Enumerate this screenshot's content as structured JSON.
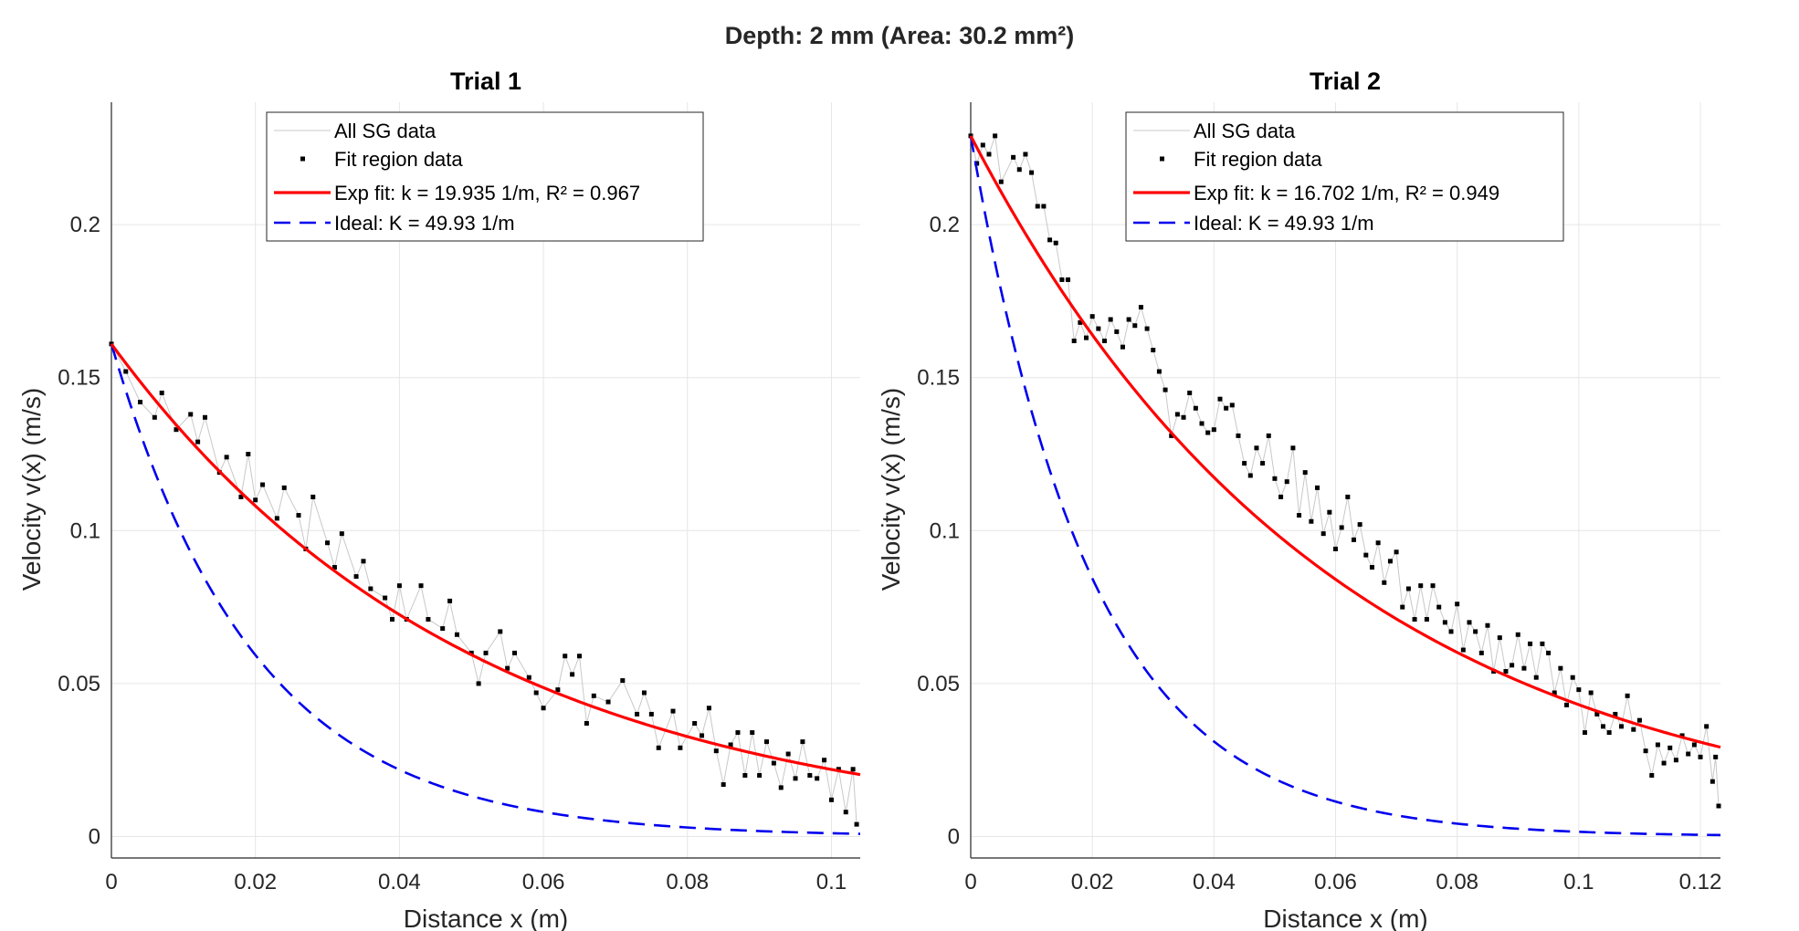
{
  "title": "Depth: 2 mm (Area: 30.2 mm²)",
  "colors": {
    "data_line": "#c8c8c8",
    "points": "#000000",
    "fit": "#ff0000",
    "ideal": "#0000ee",
    "grid": "#e6e6e6"
  },
  "chart_data": [
    {
      "type": "line",
      "title": "Trial 1",
      "xlabel": "Distance x (m)",
      "ylabel": "Velocity v(x) (m/s)",
      "xlim": [
        0,
        0.104
      ],
      "ylim": [
        -0.007,
        0.24
      ],
      "xticks": [
        0,
        0.02,
        0.04,
        0.06,
        0.08,
        0.1
      ],
      "xtick_labels": [
        "0",
        "0.02",
        "0.04",
        "0.06",
        "0.08",
        "0.1"
      ],
      "yticks": [
        0,
        0.05,
        0.1,
        0.15,
        0.2
      ],
      "ytick_labels": [
        "0",
        "0.05",
        "0.1",
        "0.15",
        "0.2"
      ],
      "grid": true,
      "legend_position": "top-center",
      "legend": [
        "All SG data",
        "Fit region data",
        "Exp fit: k = 19.935 1/m, R² = 0.967",
        "Ideal: K = 49.93 1/m"
      ],
      "fit": {
        "v0": 0.161,
        "k": 19.935
      },
      "ideal": {
        "v0": 0.161,
        "k": 49.93
      },
      "points": [
        [
          0,
          0.161
        ],
        [
          0.002,
          0.152
        ],
        [
          0.004,
          0.142
        ],
        [
          0.006,
          0.137
        ],
        [
          0.007,
          0.145
        ],
        [
          0.009,
          0.133
        ],
        [
          0.011,
          0.138
        ],
        [
          0.012,
          0.129
        ],
        [
          0.013,
          0.137
        ],
        [
          0.015,
          0.119
        ],
        [
          0.016,
          0.124
        ],
        [
          0.018,
          0.111
        ],
        [
          0.019,
          0.125
        ],
        [
          0.02,
          0.11
        ],
        [
          0.021,
          0.115
        ],
        [
          0.023,
          0.104
        ],
        [
          0.024,
          0.114
        ],
        [
          0.026,
          0.105
        ],
        [
          0.027,
          0.094
        ],
        [
          0.028,
          0.111
        ],
        [
          0.03,
          0.096
        ],
        [
          0.031,
          0.088
        ],
        [
          0.032,
          0.099
        ],
        [
          0.034,
          0.085
        ],
        [
          0.035,
          0.09
        ],
        [
          0.036,
          0.081
        ],
        [
          0.038,
          0.078
        ],
        [
          0.039,
          0.071
        ],
        [
          0.04,
          0.082
        ],
        [
          0.041,
          0.071
        ],
        [
          0.043,
          0.082
        ],
        [
          0.044,
          0.071
        ],
        [
          0.046,
          0.068
        ],
        [
          0.047,
          0.077
        ],
        [
          0.048,
          0.066
        ],
        [
          0.05,
          0.06
        ],
        [
          0.051,
          0.05
        ],
        [
          0.052,
          0.06
        ],
        [
          0.054,
          0.067
        ],
        [
          0.055,
          0.055
        ],
        [
          0.056,
          0.06
        ],
        [
          0.058,
          0.052
        ],
        [
          0.059,
          0.047
        ],
        [
          0.06,
          0.042
        ],
        [
          0.062,
          0.048
        ],
        [
          0.063,
          0.059
        ],
        [
          0.064,
          0.053
        ],
        [
          0.065,
          0.059
        ],
        [
          0.066,
          0.037
        ],
        [
          0.067,
          0.046
        ],
        [
          0.069,
          0.044
        ],
        [
          0.071,
          0.051
        ],
        [
          0.073,
          0.04
        ],
        [
          0.074,
          0.047
        ],
        [
          0.075,
          0.04
        ],
        [
          0.076,
          0.029
        ],
        [
          0.078,
          0.041
        ],
        [
          0.079,
          0.029
        ],
        [
          0.081,
          0.037
        ],
        [
          0.082,
          0.033
        ],
        [
          0.083,
          0.042
        ],
        [
          0.084,
          0.028
        ],
        [
          0.085,
          0.017
        ],
        [
          0.086,
          0.03
        ],
        [
          0.087,
          0.034
        ],
        [
          0.088,
          0.02
        ],
        [
          0.089,
          0.034
        ],
        [
          0.09,
          0.02
        ],
        [
          0.091,
          0.031
        ],
        [
          0.092,
          0.024
        ],
        [
          0.093,
          0.016
        ],
        [
          0.094,
          0.027
        ],
        [
          0.095,
          0.019
        ],
        [
          0.096,
          0.031
        ],
        [
          0.097,
          0.02
        ],
        [
          0.098,
          0.019
        ],
        [
          0.099,
          0.025
        ],
        [
          0.1,
          0.012
        ],
        [
          0.101,
          0.022
        ],
        [
          0.102,
          0.008
        ],
        [
          0.103,
          0.022
        ],
        [
          0.1035,
          0.004
        ]
      ]
    },
    {
      "type": "line",
      "title": "Trial 2",
      "xlabel": "Distance x (m)",
      "ylabel": "Velocity v(x) (m/s)",
      "xlim": [
        0,
        0.1233
      ],
      "ylim": [
        -0.007,
        0.24
      ],
      "xticks": [
        0,
        0.02,
        0.04,
        0.06,
        0.08,
        0.1,
        0.12
      ],
      "xtick_labels": [
        "0",
        "0.02",
        "0.04",
        "0.06",
        "0.08",
        "0.1",
        "0.12"
      ],
      "yticks": [
        0,
        0.05,
        0.1,
        0.15,
        0.2
      ],
      "ytick_labels": [
        "0",
        "0.05",
        "0.1",
        "0.15",
        "0.2"
      ],
      "grid": true,
      "legend_position": "top-center",
      "legend": [
        "All SG data",
        "Fit region data",
        "Exp fit: k = 16.702 1/m, R² = 0.949",
        "Ideal: K = 49.93 1/m"
      ],
      "fit": {
        "v0": 0.229,
        "k": 16.702
      },
      "ideal": {
        "v0": 0.229,
        "k": 49.93
      },
      "points": [
        [
          0,
          0.229
        ],
        [
          0.001,
          0.22
        ],
        [
          0.002,
          0.226
        ],
        [
          0.003,
          0.223
        ],
        [
          0.004,
          0.229
        ],
        [
          0.005,
          0.214
        ],
        [
          0.007,
          0.222
        ],
        [
          0.008,
          0.218
        ],
        [
          0.009,
          0.223
        ],
        [
          0.01,
          0.217
        ],
        [
          0.011,
          0.206
        ],
        [
          0.012,
          0.206
        ],
        [
          0.013,
          0.195
        ],
        [
          0.014,
          0.194
        ],
        [
          0.015,
          0.182
        ],
        [
          0.016,
          0.182
        ],
        [
          0.017,
          0.162
        ],
        [
          0.018,
          0.168
        ],
        [
          0.019,
          0.163
        ],
        [
          0.02,
          0.17
        ],
        [
          0.021,
          0.166
        ],
        [
          0.022,
          0.162
        ],
        [
          0.023,
          0.169
        ],
        [
          0.024,
          0.165
        ],
        [
          0.025,
          0.16
        ],
        [
          0.026,
          0.169
        ],
        [
          0.027,
          0.167
        ],
        [
          0.028,
          0.173
        ],
        [
          0.029,
          0.166
        ],
        [
          0.03,
          0.159
        ],
        [
          0.031,
          0.152
        ],
        [
          0.032,
          0.146
        ],
        [
          0.033,
          0.131
        ],
        [
          0.034,
          0.138
        ],
        [
          0.035,
          0.137
        ],
        [
          0.036,
          0.145
        ],
        [
          0.037,
          0.14
        ],
        [
          0.038,
          0.135
        ],
        [
          0.039,
          0.132
        ],
        [
          0.04,
          0.133
        ],
        [
          0.041,
          0.143
        ],
        [
          0.042,
          0.14
        ],
        [
          0.043,
          0.141
        ],
        [
          0.044,
          0.131
        ],
        [
          0.045,
          0.122
        ],
        [
          0.046,
          0.118
        ],
        [
          0.047,
          0.127
        ],
        [
          0.048,
          0.122
        ],
        [
          0.049,
          0.131
        ],
        [
          0.05,
          0.117
        ],
        [
          0.051,
          0.111
        ],
        [
          0.052,
          0.116
        ],
        [
          0.053,
          0.127
        ],
        [
          0.054,
          0.105
        ],
        [
          0.055,
          0.119
        ],
        [
          0.056,
          0.103
        ],
        [
          0.057,
          0.114
        ],
        [
          0.058,
          0.099
        ],
        [
          0.059,
          0.106
        ],
        [
          0.06,
          0.094
        ],
        [
          0.061,
          0.101
        ],
        [
          0.062,
          0.111
        ],
        [
          0.063,
          0.097
        ],
        [
          0.064,
          0.102
        ],
        [
          0.065,
          0.092
        ],
        [
          0.066,
          0.088
        ],
        [
          0.067,
          0.096
        ],
        [
          0.068,
          0.083
        ],
        [
          0.069,
          0.09
        ],
        [
          0.07,
          0.093
        ],
        [
          0.071,
          0.075
        ],
        [
          0.072,
          0.081
        ],
        [
          0.073,
          0.071
        ],
        [
          0.074,
          0.082
        ],
        [
          0.075,
          0.071
        ],
        [
          0.076,
          0.082
        ],
        [
          0.077,
          0.075
        ],
        [
          0.078,
          0.07
        ],
        [
          0.079,
          0.067
        ],
        [
          0.08,
          0.076
        ],
        [
          0.081,
          0.061
        ],
        [
          0.082,
          0.07
        ],
        [
          0.083,
          0.067
        ],
        [
          0.084,
          0.06
        ],
        [
          0.085,
          0.069
        ],
        [
          0.086,
          0.054
        ],
        [
          0.087,
          0.065
        ],
        [
          0.088,
          0.054
        ],
        [
          0.089,
          0.056
        ],
        [
          0.09,
          0.066
        ],
        [
          0.091,
          0.055
        ],
        [
          0.092,
          0.063
        ],
        [
          0.093,
          0.052
        ],
        [
          0.094,
          0.063
        ],
        [
          0.095,
          0.06
        ],
        [
          0.096,
          0.047
        ],
        [
          0.097,
          0.055
        ],
        [
          0.098,
          0.043
        ],
        [
          0.099,
          0.052
        ],
        [
          0.1,
          0.048
        ],
        [
          0.101,
          0.034
        ],
        [
          0.102,
          0.047
        ],
        [
          0.103,
          0.04
        ],
        [
          0.104,
          0.036
        ],
        [
          0.105,
          0.034
        ],
        [
          0.106,
          0.04
        ],
        [
          0.107,
          0.036
        ],
        [
          0.108,
          0.046
        ],
        [
          0.109,
          0.035
        ],
        [
          0.11,
          0.038
        ],
        [
          0.111,
          0.028
        ],
        [
          0.112,
          0.02
        ],
        [
          0.113,
          0.03
        ],
        [
          0.114,
          0.024
        ],
        [
          0.115,
          0.029
        ],
        [
          0.116,
          0.025
        ],
        [
          0.117,
          0.033
        ],
        [
          0.118,
          0.027
        ],
        [
          0.119,
          0.03
        ],
        [
          0.12,
          0.026
        ],
        [
          0.121,
          0.036
        ],
        [
          0.122,
          0.018
        ],
        [
          0.1225,
          0.026
        ],
        [
          0.123,
          0.01
        ]
      ]
    }
  ]
}
